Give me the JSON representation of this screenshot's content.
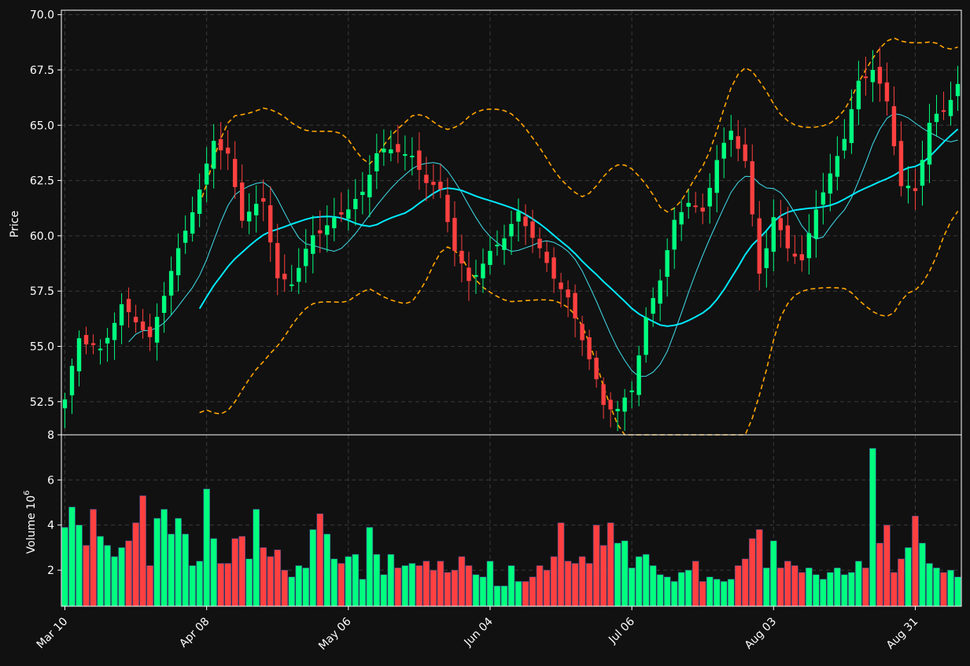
{
  "colors": {
    "background": "#111111",
    "up": "#00ff7f",
    "down": "#ff4040",
    "ma_fast": "#40e0ee",
    "ma_slow": "#00eaff",
    "bollinger": "#ffa500",
    "grid": "#3a3a3a",
    "axis": "#ffffff"
  },
  "chart_data": [
    {
      "type": "candlestick",
      "ylabel": "Price",
      "ylim": [
        51.0,
        70.2
      ],
      "yticks": [
        "52.5",
        "55.0",
        "57.5",
        "60.0",
        "62.5",
        "65.0",
        "67.5",
        "70.0"
      ],
      "ytick_values": [
        52.5,
        55.0,
        57.5,
        60.0,
        62.5,
        65.0,
        67.5,
        70.0
      ],
      "xtick_labels": [
        "Mar 10",
        "Apr 08",
        "May 06",
        "Jun 04",
        "Jul 06",
        "Aug 03",
        "Aug 31"
      ],
      "xtick_index": [
        0,
        20,
        40,
        60,
        80,
        100,
        120
      ],
      "grid": true,
      "n_bars": 127,
      "close_anchors": [
        [
          0,
          52.6
        ],
        [
          2,
          55.4
        ],
        [
          5,
          54.8
        ],
        [
          8,
          56.8
        ],
        [
          10,
          56.2
        ],
        [
          12,
          55.3
        ],
        [
          14,
          57.4
        ],
        [
          17,
          60.3
        ],
        [
          19,
          62.0
        ],
        [
          21,
          64.4
        ],
        [
          22,
          63.9
        ],
        [
          23,
          63.6
        ],
        [
          25,
          60.8
        ],
        [
          28,
          61.6
        ],
        [
          30,
          58.0
        ],
        [
          32,
          57.9
        ],
        [
          35,
          60.0
        ],
        [
          38,
          60.7
        ],
        [
          40,
          61.3
        ],
        [
          42,
          61.9
        ],
        [
          44,
          63.8
        ],
        [
          47,
          63.9
        ],
        [
          49,
          63.5
        ],
        [
          51,
          62.5
        ],
        [
          53,
          62.0
        ],
        [
          55,
          59.4
        ],
        [
          57,
          57.9
        ],
        [
          60,
          59.2
        ],
        [
          62,
          60.0
        ],
        [
          64,
          61.0
        ],
        [
          66,
          60.0
        ],
        [
          68,
          58.7
        ],
        [
          71,
          57.1
        ],
        [
          73,
          55.4
        ],
        [
          76,
          52.4
        ],
        [
          78,
          52.1
        ],
        [
          80,
          53.1
        ],
        [
          82,
          56.2
        ],
        [
          84,
          58.1
        ],
        [
          86,
          60.6
        ],
        [
          88,
          61.6
        ],
        [
          90,
          61.0
        ],
        [
          92,
          63.5
        ],
        [
          94,
          64.7
        ],
        [
          96,
          63.4
        ],
        [
          98,
          58.3
        ],
        [
          100,
          60.8
        ],
        [
          102,
          59.5
        ],
        [
          104,
          58.8
        ],
        [
          106,
          61.3
        ],
        [
          108,
          62.7
        ],
        [
          110,
          64.5
        ],
        [
          112,
          66.9
        ],
        [
          114,
          67.6
        ],
        [
          116,
          66.0
        ],
        [
          118,
          62.3
        ],
        [
          120,
          62.0
        ],
        [
          122,
          65.1
        ],
        [
          124,
          65.7
        ],
        [
          126,
          66.8
        ]
      ],
      "ma_fast_start": 9,
      "ma_slow_start": 19,
      "bollinger_start": 19
    },
    {
      "type": "bar",
      "ylabel": "Volume",
      "ylabel_exponent": "10",
      "ylabel_exponent_power": "6",
      "ylim": [
        0.4,
        8.0
      ],
      "yticks": [
        "2",
        "4",
        "6",
        "8"
      ],
      "ytick_values": [
        2,
        4,
        6,
        8
      ],
      "grid": true,
      "values_millions": [
        3.9,
        4.8,
        4.0,
        3.1,
        4.7,
        3.5,
        3.1,
        2.6,
        3.0,
        3.3,
        4.1,
        5.3,
        2.2,
        4.3,
        4.7,
        3.6,
        4.3,
        3.6,
        2.2,
        2.4,
        5.6,
        3.4,
        2.3,
        2.3,
        3.4,
        3.5,
        2.5,
        4.7,
        3.0,
        2.6,
        2.9,
        2.0,
        1.7,
        2.2,
        2.1,
        3.8,
        4.5,
        3.6,
        2.5,
        2.3,
        2.6,
        2.7,
        1.6,
        3.9,
        2.7,
        1.8,
        2.7,
        2.1,
        2.2,
        2.3,
        2.2,
        2.4,
        2.0,
        2.4,
        1.9,
        2.0,
        2.6,
        2.2,
        1.8,
        1.7,
        2.4,
        1.3,
        1.3,
        2.2,
        1.5,
        1.5,
        1.7,
        2.2,
        2.0,
        2.6,
        4.1,
        2.4,
        2.3,
        2.6,
        2.3,
        4.0,
        3.1,
        4.1,
        3.2,
        3.3,
        2.1,
        2.6,
        2.7,
        2.2,
        1.8,
        1.7,
        1.5,
        1.9,
        2.0,
        2.4,
        1.5,
        1.7,
        1.6,
        1.5,
        1.6,
        2.2,
        2.5,
        3.4,
        3.8,
        2.1,
        3.3,
        2.1,
        2.4,
        2.2,
        1.9,
        2.1,
        1.8,
        1.6,
        1.9,
        2.1,
        1.8,
        1.9,
        2.4,
        2.1,
        7.4,
        3.2,
        4.0,
        1.9,
        2.5,
        3.0,
        4.4,
        3.2,
        2.3,
        2.1,
        1.9,
        2.0,
        1.7
      ]
    }
  ]
}
